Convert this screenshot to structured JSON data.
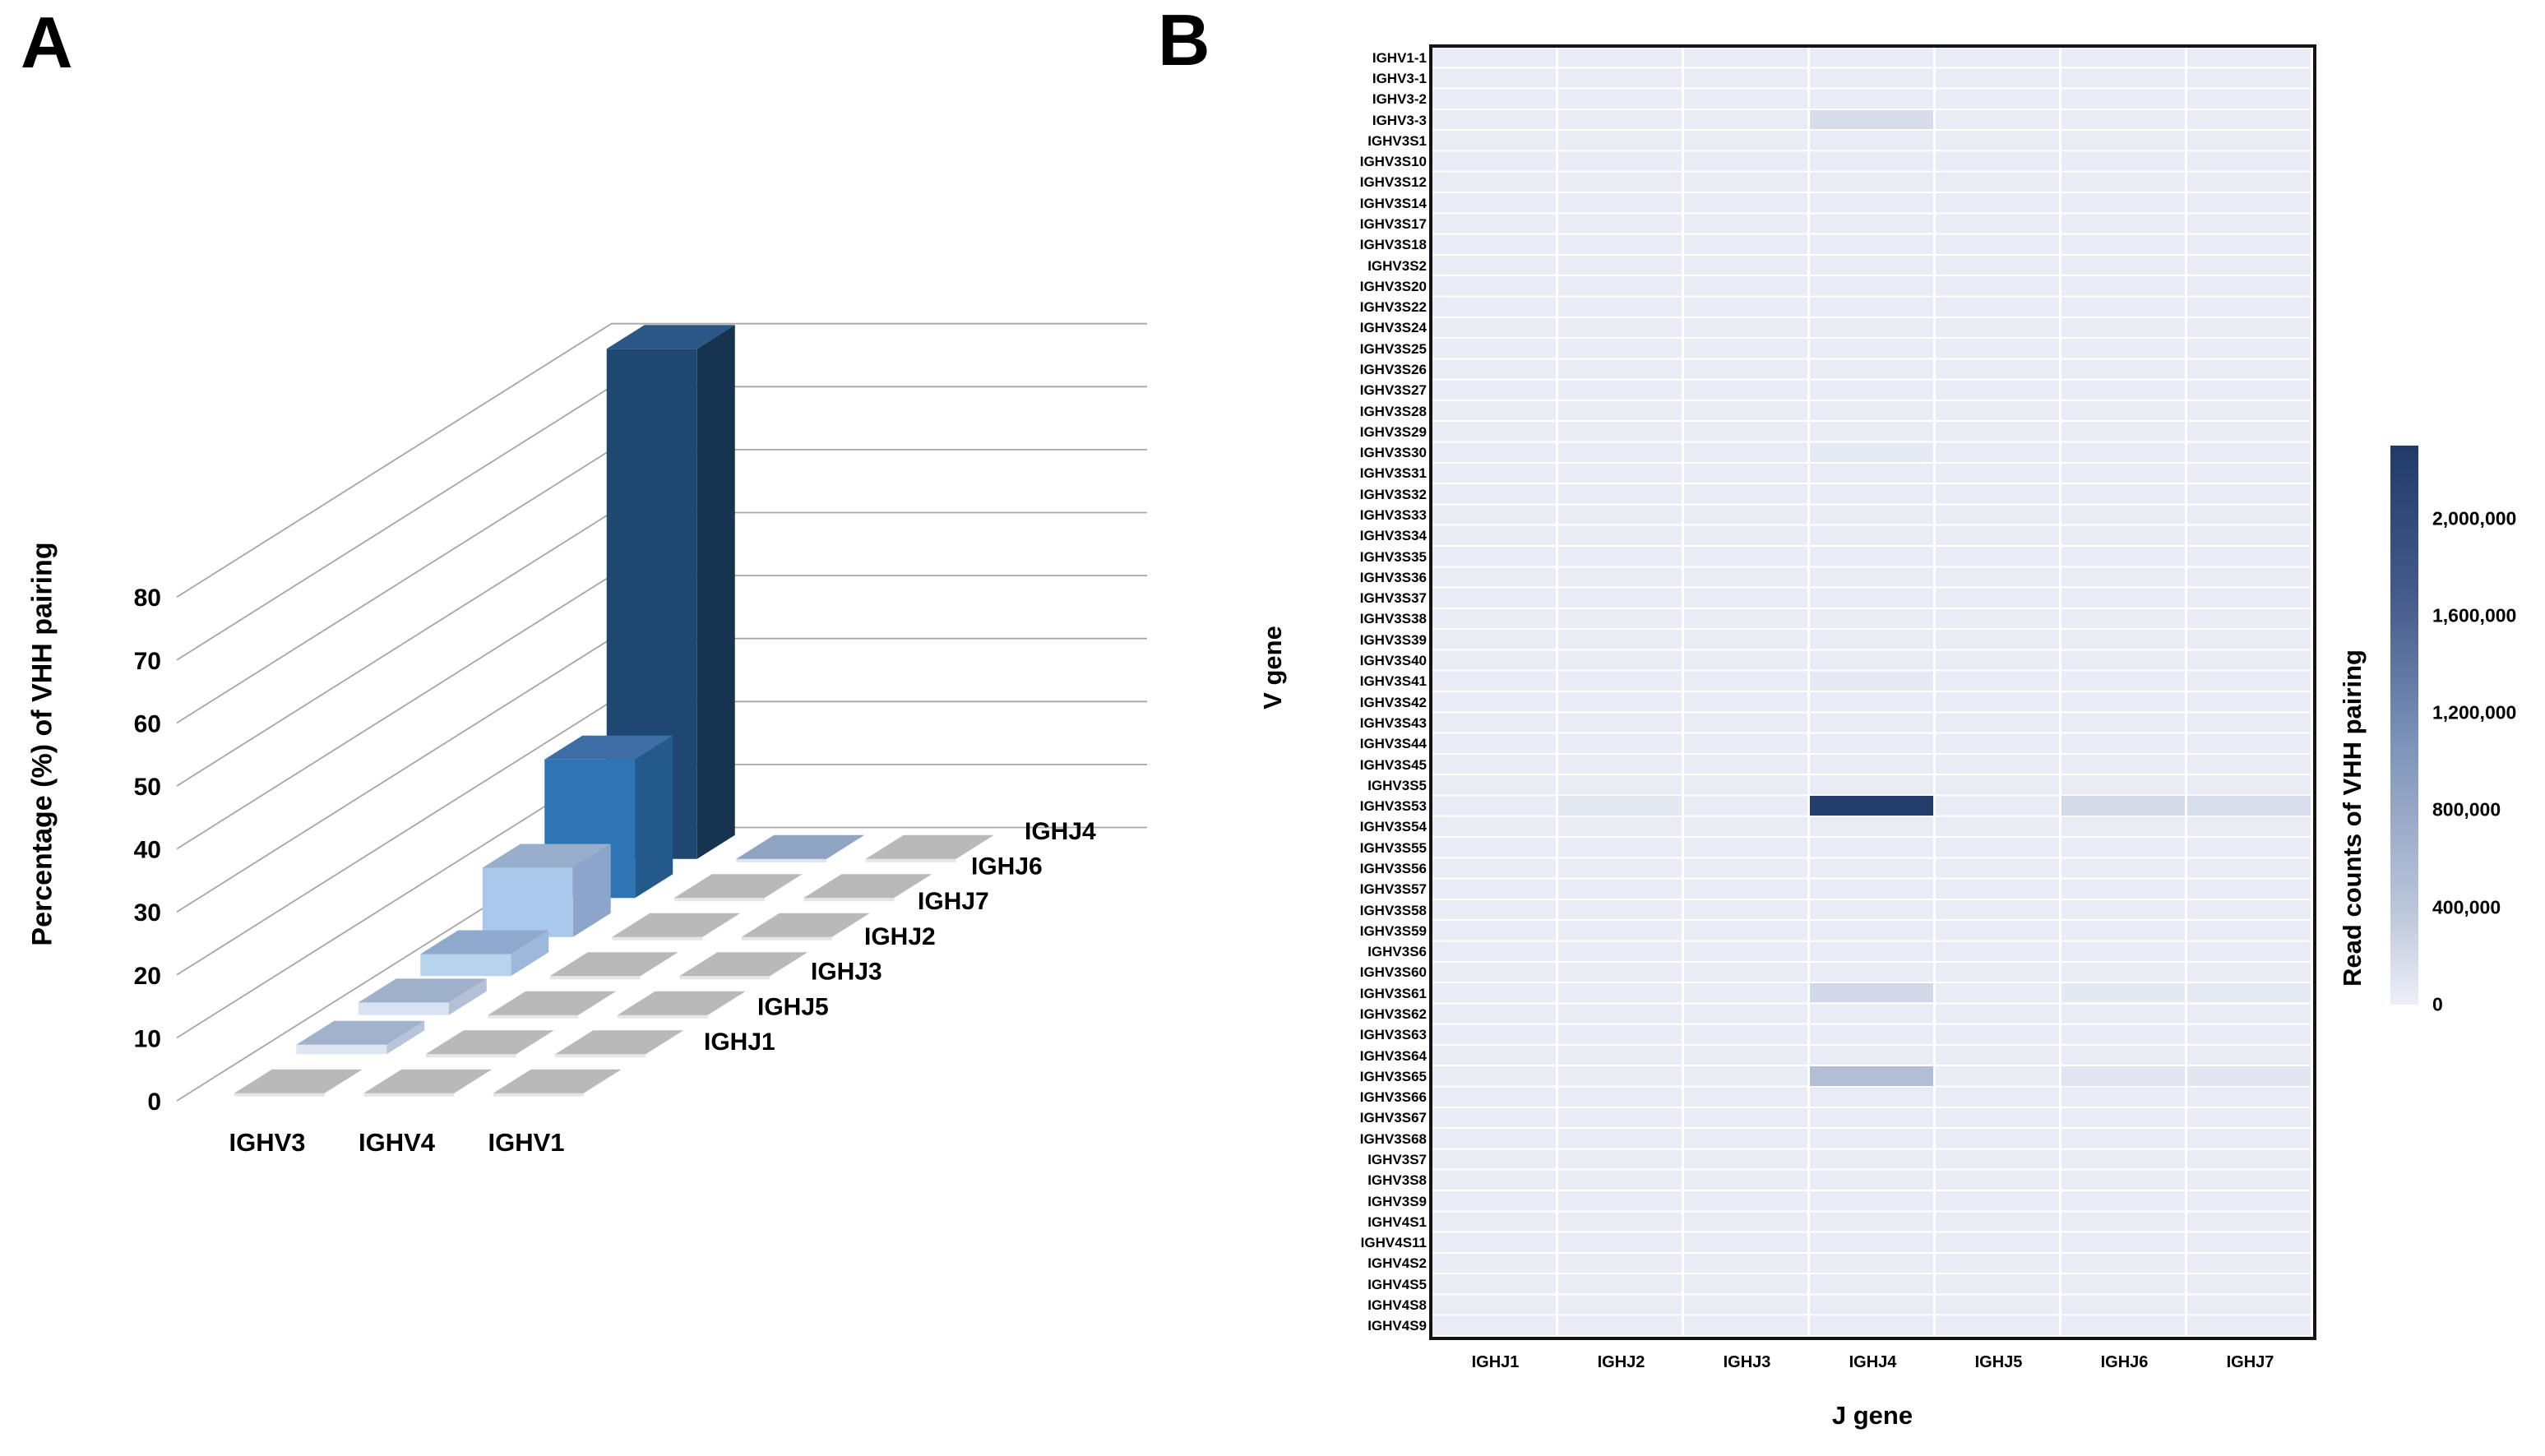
{
  "figure": {
    "panel_a": {
      "label": "A"
    },
    "panel_b": {
      "label": "B"
    }
  },
  "chart_data": [
    {
      "type": "bar",
      "projection": "3d",
      "title": "",
      "ylabel": "Percentage (%) of VHH pairing",
      "xlabel": "",
      "ylim": [
        0,
        80
      ],
      "y_ticks": [
        0,
        10,
        20,
        30,
        40,
        50,
        60,
        70,
        80
      ],
      "categories": [
        "IGHV3",
        "IGHV4",
        "IGHV1"
      ],
      "rows_front_to_back": [
        "IGHJ1",
        "IGHJ5",
        "IGHJ3",
        "IGHJ2",
        "IGHJ7",
        "IGHJ6",
        "IGHJ4"
      ],
      "series": [
        {
          "name": "IGHJ1",
          "values": [
            0.2,
            0,
            0
          ]
        },
        {
          "name": "IGHJ5",
          "values": [
            1.5,
            0,
            0
          ]
        },
        {
          "name": "IGHJ3",
          "values": [
            2,
            0,
            0
          ]
        },
        {
          "name": "IGHJ2",
          "values": [
            3.5,
            0,
            0
          ]
        },
        {
          "name": "IGHJ7",
          "values": [
            11,
            0,
            0
          ]
        },
        {
          "name": "IGHJ6",
          "values": [
            22,
            0,
            0
          ]
        },
        {
          "name": "IGHJ4",
          "values": [
            81,
            0.8,
            0
          ]
        }
      ],
      "series_colors": {
        "IGHJ1": {
          "top": "#a9b6cc",
          "front": "#e3e9f3",
          "side": "#bcc7da"
        },
        "IGHJ5": {
          "top": "#a2b2cc",
          "front": "#dfe6f2",
          "side": "#b8c4d9"
        },
        "IGHJ3": {
          "top": "#9fb0cb",
          "front": "#d9e2f0",
          "side": "#b3c0d7"
        },
        "IGHJ2": {
          "top": "#8fa9cc",
          "front": "#b7d3ee",
          "side": "#9db8da"
        },
        "IGHJ7": {
          "top": "#97aecd",
          "front": "#a9c8ea",
          "side": "#8ba6c9"
        },
        "IGHJ6": {
          "top": "#3f6ea6",
          "front": "#2e75b6",
          "side": "#24598c"
        },
        "IGHJ4": {
          "top": "#2b5685",
          "front": "#1e4772",
          "side": "#16334f"
        }
      },
      "pad_colors": {
        "pad_top": "#b9b9b9",
        "pad_front": "#e6e6e6",
        "tinted_pad_top": "#8fa3c2",
        "tinted_pad_front": "#dbe2ec"
      },
      "gridline_color": "#a6a6a6"
    },
    {
      "type": "heatmap",
      "title": "",
      "xlabel": "J gene",
      "ylabel": "V gene",
      "x_labels": [
        "IGHJ1",
        "IGHJ2",
        "IGHJ3",
        "IGHJ4",
        "IGHJ5",
        "IGHJ6",
        "IGHJ7"
      ],
      "y_labels": [
        "IGHV1-1",
        "IGHV3-1",
        "IGHV3-2",
        "IGHV3-3",
        "IGHV3S1",
        "IGHV3S10",
        "IGHV3S12",
        "IGHV3S14",
        "IGHV3S17",
        "IGHV3S18",
        "IGHV3S2",
        "IGHV3S20",
        "IGHV3S22",
        "IGHV3S24",
        "IGHV3S25",
        "IGHV3S26",
        "IGHV3S27",
        "IGHV3S28",
        "IGHV3S29",
        "IGHV3S30",
        "IGHV3S31",
        "IGHV3S32",
        "IGHV3S33",
        "IGHV3S34",
        "IGHV3S35",
        "IGHV3S36",
        "IGHV3S37",
        "IGHV3S38",
        "IGHV3S39",
        "IGHV3S40",
        "IGHV3S41",
        "IGHV3S42",
        "IGHV3S43",
        "IGHV3S44",
        "IGHV3S45",
        "IGHV3S5",
        "IGHV3S53",
        "IGHV3S54",
        "IGHV3S55",
        "IGHV3S56",
        "IGHV3S57",
        "IGHV3S58",
        "IGHV3S59",
        "IGHV3S6",
        "IGHV3S60",
        "IGHV3S61",
        "IGHV3S62",
        "IGHV3S63",
        "IGHV3S64",
        "IGHV3S65",
        "IGHV3S66",
        "IGHV3S67",
        "IGHV3S68",
        "IGHV3S7",
        "IGHV3S8",
        "IGHV3S9",
        "IGHV4S1",
        "IGHV4S11",
        "IGHV4S2",
        "IGHV4S5",
        "IGHV4S8",
        "IGHV4S9"
      ],
      "background_color": "#e9ecf4",
      "grid_color": "#ffffff",
      "cells": [
        {
          "v": "IGHV3-3",
          "j": "IGHJ4",
          "value": 180000
        },
        {
          "v": "IGHV3S30",
          "j": "IGHJ4",
          "value": 60000
        },
        {
          "v": "IGHV3S41",
          "j": "IGHJ4",
          "value": 55000
        },
        {
          "v": "IGHV3S53",
          "j": "IGHJ2",
          "value": 70000
        },
        {
          "v": "IGHV3S53",
          "j": "IGHJ4",
          "value": 2250000
        },
        {
          "v": "IGHV3S53",
          "j": "IGHJ6",
          "value": 200000
        },
        {
          "v": "IGHV3S53",
          "j": "IGHJ7",
          "value": 170000
        },
        {
          "v": "IGHV3S61",
          "j": "IGHJ4",
          "value": 220000
        },
        {
          "v": "IGHV3S61",
          "j": "IGHJ6",
          "value": 70000
        },
        {
          "v": "IGHV3S61",
          "j": "IGHJ7",
          "value": 60000
        },
        {
          "v": "IGHV3S65",
          "j": "IGHJ4",
          "value": 500000
        },
        {
          "v": "IGHV3S65",
          "j": "IGHJ6",
          "value": 100000
        },
        {
          "v": "IGHV3S65",
          "j": "IGHJ7",
          "value": 90000
        }
      ],
      "colorbar": {
        "title": "Read counts of VHH pairing",
        "scale_max": 2300000,
        "tick_values": [
          2000000,
          1600000,
          1200000,
          800000,
          400000,
          0
        ],
        "tick_labels": [
          "2,000,000",
          "1,600,000",
          "1,200,000",
          "800,000",
          "400,000",
          "0"
        ],
        "gradient_stops": [
          [
            0,
            "#eceff6"
          ],
          [
            0.18,
            "#b9c4d9"
          ],
          [
            0.45,
            "#8096ba"
          ],
          [
            0.72,
            "#465d8d"
          ],
          [
            1,
            "#203a69"
          ]
        ]
      }
    }
  ]
}
